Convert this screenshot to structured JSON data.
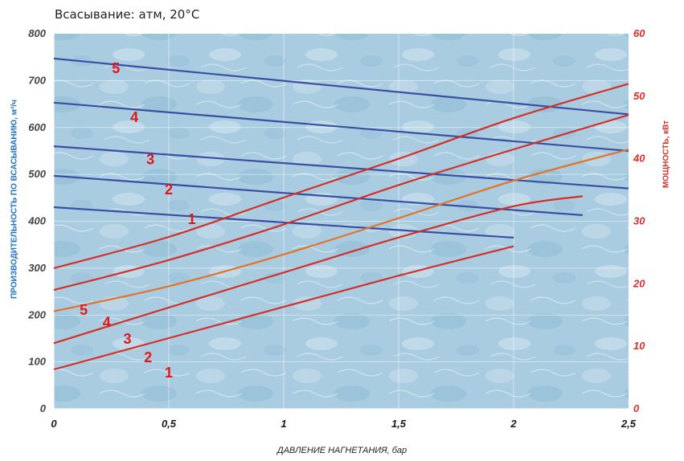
{
  "chart_data": {
    "type": "line",
    "title": "Всасывание: атм, 20°C",
    "xlabel": "ДАВЛЕНИЕ НАГНЕТАНИЯ, бар",
    "ylabel_left": "ПРОИЗВОДИТЕЛЬНОСТЬ ПО ВСАСЫВАНИЮ, м³/ч",
    "ylabel_right": "МОЩНОСТЬ, кВт",
    "xlim": [
      0,
      2.5
    ],
    "ylim_left": [
      0,
      800
    ],
    "ylim_right": [
      0,
      60
    ],
    "x_ticks": [
      "0",
      "0,5",
      "1",
      "1,5",
      "2",
      "2,5"
    ],
    "y_ticks_left": [
      "0",
      "100",
      "200",
      "300",
      "400",
      "500",
      "600",
      "700",
      "800"
    ],
    "y_ticks_right": [
      "0",
      "10",
      "20",
      "30",
      "40",
      "50",
      "60"
    ],
    "grid": true,
    "colors": {
      "plot_background": "#a9cce0",
      "capacity_line": "#3a4fa3",
      "power_line": "#d2312a",
      "power_line_3": "#e2742a",
      "left_axis_text": "#1f73c4",
      "right_axis_text": "#d2312a",
      "number_label": "#e0191b"
    },
    "capacity_series": [
      {
        "name": "1",
        "axis": "left",
        "x": [
          0,
          2
        ],
        "y": [
          430,
          365
        ]
      },
      {
        "name": "2",
        "axis": "left",
        "x": [
          0,
          2.3
        ],
        "y": [
          497,
          413
        ]
      },
      {
        "name": "3",
        "axis": "left",
        "x": [
          0,
          2.5
        ],
        "y": [
          560,
          470
        ]
      },
      {
        "name": "4",
        "axis": "left",
        "x": [
          0,
          2.5
        ],
        "y": [
          653,
          550
        ]
      },
      {
        "name": "5",
        "axis": "left",
        "x": [
          0,
          2.5
        ],
        "y": [
          747,
          628
        ]
      }
    ],
    "power_series": [
      {
        "name": "1",
        "axis": "right",
        "x": [
          0,
          0.5,
          1,
          1.5,
          2
        ],
        "y": [
          6.3,
          11.3,
          16.3,
          21.3,
          26
        ]
      },
      {
        "name": "2",
        "axis": "right",
        "x": [
          0,
          0.5,
          1,
          1.5,
          2,
          2.3
        ],
        "y": [
          10.5,
          16.2,
          21.8,
          27.4,
          32.4,
          34
        ]
      },
      {
        "name": "3",
        "axis": "right",
        "x": [
          0,
          0.5,
          1,
          1.5,
          2,
          2.5
        ],
        "y": [
          15.6,
          19.6,
          24.7,
          30.5,
          36.5,
          41.5
        ]
      },
      {
        "name": "4",
        "axis": "right",
        "x": [
          0,
          0.5,
          1,
          1.5,
          2,
          2.5
        ],
        "y": [
          19,
          23.8,
          29.5,
          35.8,
          41.5,
          47
        ]
      },
      {
        "name": "5",
        "axis": "right",
        "x": [
          0,
          0.5,
          1,
          1.5,
          2,
          2.5
        ],
        "y": [
          22.5,
          27.5,
          33.8,
          40,
          46.5,
          52
        ]
      }
    ],
    "capacity_labels": [
      {
        "text": "1",
        "x": 0.6,
        "y": 404
      },
      {
        "text": "2",
        "x": 0.5,
        "y": 468
      },
      {
        "text": "3",
        "x": 0.42,
        "y": 532
      },
      {
        "text": "4",
        "x": 0.35,
        "y": 622
      },
      {
        "text": "5",
        "x": 0.27,
        "y": 726
      }
    ],
    "power_labels": [
      {
        "text": "1",
        "x": 0.5,
        "y": 5.8
      },
      {
        "text": "2",
        "x": 0.41,
        "y": 8.2
      },
      {
        "text": "3",
        "x": 0.32,
        "y": 11.2
      },
      {
        "text": "4",
        "x": 0.23,
        "y": 13.8
      },
      {
        "text": "5",
        "x": 0.13,
        "y": 15.8
      }
    ]
  }
}
